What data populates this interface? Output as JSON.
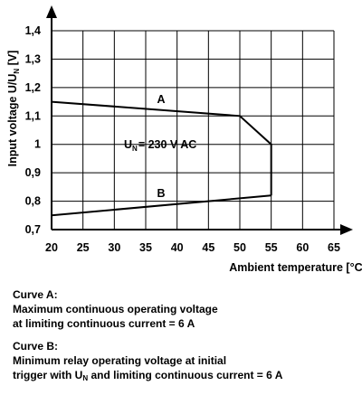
{
  "chart_data": {
    "type": "line",
    "title": "",
    "xlabel": "Ambient temperature [°C]",
    "ylabel_prefix": "Input voltage U/U",
    "ylabel_sub": "N",
    "ylabel_suffix": " [V]",
    "xlim": [
      20,
      65
    ],
    "ylim": [
      0.7,
      1.4
    ],
    "x_ticks": [
      "20",
      "25",
      "30",
      "35",
      "40",
      "45",
      "50",
      "55",
      "60",
      "65"
    ],
    "y_ticks": [
      "0,7",
      "0,8",
      "0,9",
      "1",
      "1,1",
      "1,2",
      "1,3",
      "1,4"
    ],
    "grid": true,
    "series": [
      {
        "name": "A",
        "x": [
          20,
          50,
          55,
          55
        ],
        "y": [
          1.15,
          1.1,
          1.0,
          0.82
        ]
      },
      {
        "name": "B",
        "x": [
          20,
          55
        ],
        "y": [
          0.75,
          0.82
        ]
      }
    ],
    "annotation": {
      "prefix": "U",
      "sub": "N",
      "suffix": "= 230 V AC"
    }
  },
  "notes": {
    "curve_a_title": "Curve A:",
    "curve_a_line1": "Maximum continuous operating voltage",
    "curve_a_line2": "at limiting continuous current = 6 A",
    "curve_b_title": "Curve B:",
    "curve_b_line1": "Minimum relay operating voltage at initial",
    "curve_b_line2_prefix": "trigger with U",
    "curve_b_line2_sub": "N",
    "curve_b_line2_suffix": "  and limiting continuous current = 6 A"
  }
}
